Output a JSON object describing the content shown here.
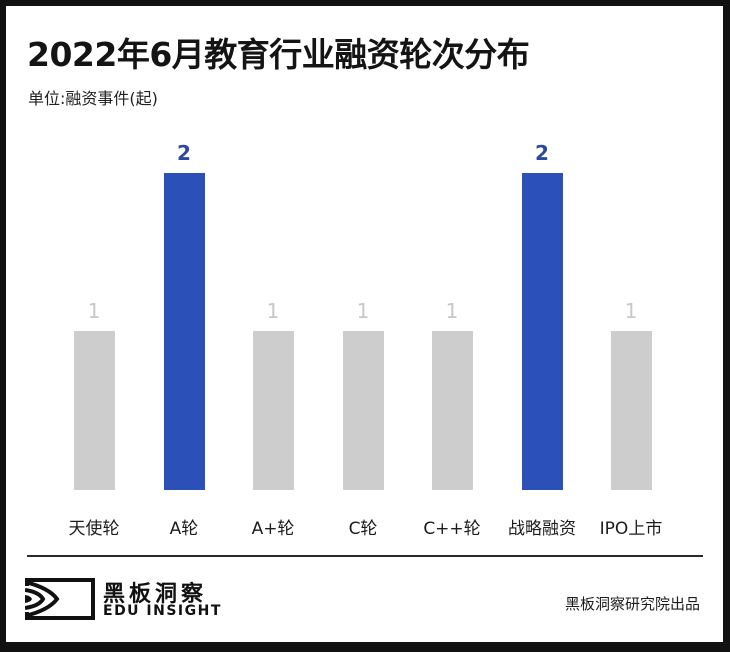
{
  "header": {
    "title": "2022年6月教育行业融资轮次分布",
    "unit": "单位:融资事件(起)"
  },
  "colors": {
    "highlight": "#2B50B8",
    "normal": "#CDCDCD",
    "highlight_label": "#2B4A9E",
    "normal_label": "#C8C8C8"
  },
  "chart_data": {
    "type": "bar",
    "title": "2022年6月教育行业融资轮次分布",
    "subtitle": "单位:融资事件(起)",
    "xlabel": "",
    "ylabel": "融资事件(起)",
    "categories": [
      "天使轮",
      "A轮",
      "A+轮",
      "C轮",
      "C++轮",
      "战略融资",
      "IPO上市"
    ],
    "values": [
      1,
      2,
      1,
      1,
      1,
      2,
      1
    ],
    "value_labels": [
      "1",
      "2",
      "1",
      "1",
      "1",
      "2",
      "1"
    ],
    "highlighted": [
      false,
      true,
      false,
      false,
      false,
      true,
      false
    ],
    "ylim": [
      0,
      2
    ],
    "grid": false,
    "legend": null
  },
  "footer": {
    "logo_cn": "黑板洞察",
    "logo_en": "EDU INSIGHT",
    "credit": "黑板洞察研究院出品"
  }
}
